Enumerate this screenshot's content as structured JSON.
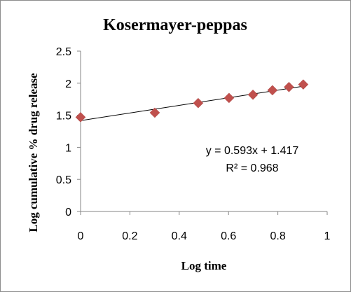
{
  "chart_data": {
    "type": "scatter",
    "title": "Kosermayer-peppas",
    "xlabel": "Log time",
    "ylabel": "Log cumulative % drug release",
    "xlim": [
      0,
      1
    ],
    "ylim": [
      0,
      2.5
    ],
    "x_ticks": [
      "0",
      "0.2",
      "0.4",
      "0.6",
      "0.8",
      "1"
    ],
    "y_ticks": [
      "0",
      "0.5",
      "1",
      "1.5",
      "2",
      "2.5"
    ],
    "grid": false,
    "legend": "none",
    "marker_color": "#C0504D",
    "series": [
      {
        "points": [
          {
            "x": 0,
            "y": 1.47
          },
          {
            "x": 0.301,
            "y": 1.54
          },
          {
            "x": 0.477,
            "y": 1.69
          },
          {
            "x": 0.602,
            "y": 1.77
          },
          {
            "x": 0.699,
            "y": 1.82
          },
          {
            "x": 0.778,
            "y": 1.89
          },
          {
            "x": 0.845,
            "y": 1.94
          },
          {
            "x": 0.903,
            "y": 1.98
          }
        ]
      }
    ],
    "trendline": {
      "slope": 0.593,
      "intercept": 1.417,
      "x_range": [
        0,
        0.903
      ],
      "color": "#000000"
    },
    "annotations": [
      "y = 0.593x + 1.417",
      "R² = 0.968"
    ]
  }
}
